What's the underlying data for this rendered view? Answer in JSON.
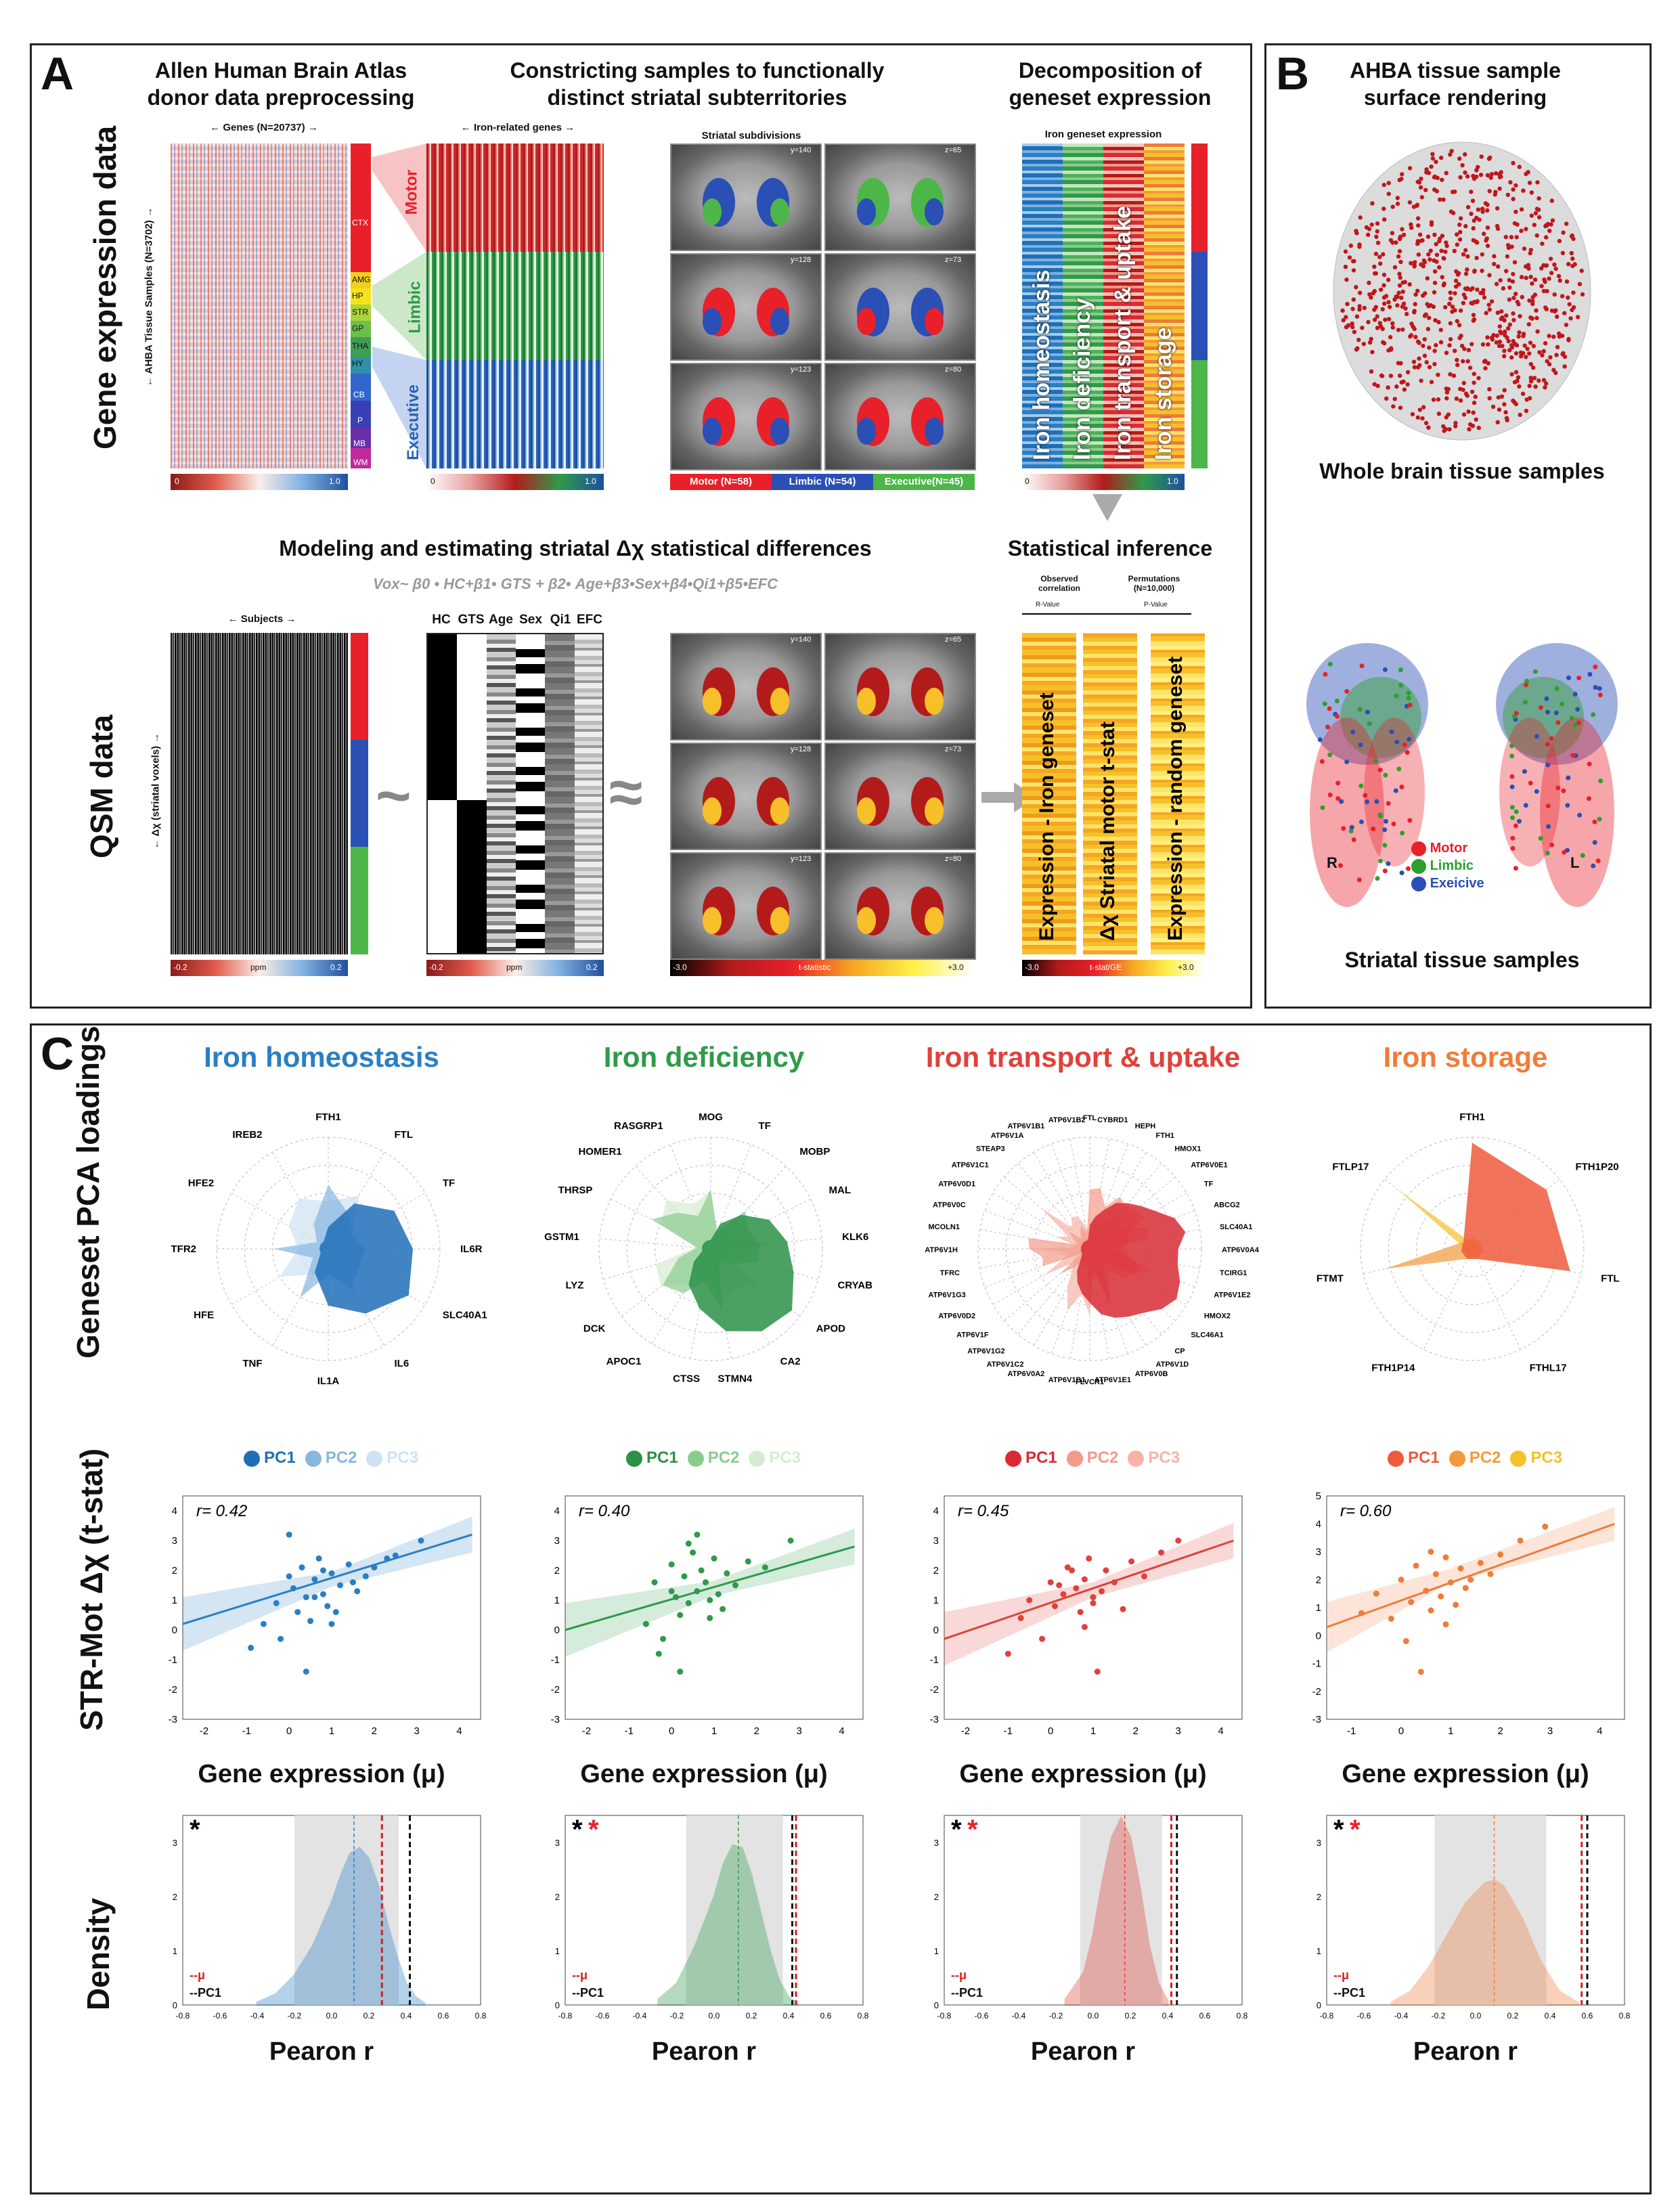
{
  "panelA": {
    "label": "A",
    "headers": {
      "h1": "Allen Human Brain Atlas\ndonor data preprocessing",
      "h2": "Constricting samples to functionally\ndistinct striatal subterritories",
      "h3": "Decomposition of\ngeneset expression",
      "h4": "Modeling  and estimating striatal Δχ statistical differences",
      "h5": "Statistical inference"
    },
    "row_labels": {
      "gene": "Gene  expression data",
      "qsm": "QSM data"
    },
    "genes_label": "Genes (N=20737)",
    "samples_label": "AHBA Tissue Samples (N=3702)",
    "iron_genes_label": "Iron-related genes",
    "regions": [
      "CTX",
      "AMG",
      "HP",
      "STR",
      "GP",
      "THA",
      "HY",
      "CB",
      "P",
      "MB",
      "WM"
    ],
    "network_labels": [
      "Motor",
      "Limbic",
      "Executive"
    ],
    "striatal_subdivisions": "Striatal subdivisions",
    "slice_labels_y": [
      "y=140",
      "y=128",
      "y=123"
    ],
    "slice_labels_z": [
      "z=65",
      "z=73",
      "z=80"
    ],
    "subdivision_legend": [
      "Motor (N=58)",
      "Limbic (N=54)",
      "Executive(N=45)"
    ],
    "iron_geneset_expression": "Iron geneset expression",
    "genesets": [
      "Iron homeostasis",
      "Iron deficiency",
      "Iron transport & uptake",
      "Iron storage"
    ],
    "cbar_0_1": [
      "0",
      "1.0"
    ],
    "formula": "Vox~ β0 • HC+β1• GTS +  β2• Age+β3•Sex+β4•Qi1+β5•EFC",
    "subjects_label": "Subjects",
    "voxels_label": "Δχ (striatal voxels)",
    "design_cols": [
      "HC",
      "GTS",
      "Age",
      "Sex",
      "Qi1",
      "EFC"
    ],
    "ppm_cbar": [
      "-0.2",
      "ppm",
      "0.2"
    ],
    "tstat_cbar": [
      "-3.0",
      "t-statistic",
      "+3.0"
    ],
    "tilde": "~",
    "approx": "≈",
    "observed": "Observed\ncorrelation",
    "r_value": "R-Value",
    "permutations": "Permutations\n(N=10,000)",
    "p_value": "P-Value",
    "inference_cols": [
      "Expression - Iron geneset",
      "Δχ Striatal motor  t-stat",
      "Expression - random geneset"
    ],
    "tstat_ge_cbar": [
      "-3.0",
      "t-stat/GE",
      "+3.0"
    ]
  },
  "panelB": {
    "label": "B",
    "title": "AHBA tissue sample\nsurface rendering",
    "whole_brain": "Whole brain tissue samples",
    "striatal": "Striatal tissue samples",
    "legend": [
      {
        "name": "Motor",
        "color": "#e8202a"
      },
      {
        "name": "Limbic",
        "color": "#2ca02c"
      },
      {
        "name": "Exeicive",
        "color": "#2a4fb5"
      }
    ],
    "side_r": "R",
    "side_l": "L"
  },
  "panelC": {
    "label": "C",
    "row_labels": {
      "pca": "Geneset PCA loadings",
      "corr": "STR-Mot Δχ (t-stat)",
      "density": "Density"
    },
    "xlabel_corr": "Gene expression (μ)",
    "xlabel_density": "Pearon r",
    "density_legend": [
      "--μ",
      "--PC1"
    ],
    "columns": [
      {
        "title": "Iron homeostasis",
        "color": "#2a7fc4",
        "pc_colors": [
          "#1f6fb8",
          "#86b7df",
          "#cfe2f3"
        ],
        "pcs": [
          "PC1",
          "PC2",
          "PC3"
        ],
        "genes": [
          "FTH1",
          "FTL",
          "TF",
          "IL6R",
          "SLC40A1",
          "IL6",
          "IL1A",
          "TNF",
          "HFE",
          "TFR2",
          "HFE2",
          "IREB2"
        ],
        "r_text": "r= 0.42",
        "stars": "*",
        "red_star": false
      },
      {
        "title": "Iron deficiency",
        "color": "#2f9a4a",
        "pc_colors": [
          "#2a9147",
          "#8acc8e",
          "#d5ecd0"
        ],
        "pcs": [
          "PC1",
          "PC2",
          "PC3"
        ],
        "genes": [
          "MOG",
          "TF",
          "MOBP",
          "MAL",
          "KLK6",
          "CRYAB",
          "APOD",
          "CA2",
          "STMN4",
          "CTSS",
          "APOC1",
          "DCK",
          "LYZ",
          "GSTM1",
          "THRSP",
          "HOMER1",
          "RASGRP1"
        ],
        "r_text": "r= 0.40",
        "stars": "*",
        "red_star": true
      },
      {
        "title": "Iron transport & uptake",
        "color": "#e0413a",
        "pc_colors": [
          "#d92b34",
          "#f39a8a",
          "#f7b3a5"
        ],
        "pcs": [
          "PC1",
          "PC2",
          "PC3"
        ],
        "genes": [
          "FTL",
          "CYBRD1",
          "HEPH",
          "FTH1",
          "HMOX1",
          "ATP6V0E1",
          "TF",
          "ABCG2",
          "SLC40A1",
          "ATP6V0A4",
          "TCIRG1",
          "ATP6V1E2",
          "HMOX2",
          "SLC46A1",
          "CP",
          "ATP6V1D",
          "ATP6V0B",
          "ATP6V1E1",
          "FLVCR1",
          "ATP6V1B1",
          "ATP6V0A2",
          "ATP6V1C2",
          "ATP6V1G2",
          "ATP6V1F",
          "ATP6V0D2",
          "ATP6V1G3",
          "TFRC",
          "ATP6V1H",
          "MCOLN1",
          "ATP6V0C",
          "ATP6V0D1",
          "ATP6V1C1",
          "STEAP3",
          "ATP6V1A",
          "ATP6V1B1",
          "ATP6V1B2"
        ],
        "r_text": "r= 0.45",
        "stars": "*",
        "red_star": true
      },
      {
        "title": "Iron storage",
        "color": "#f07c3a",
        "pc_colors": [
          "#ee5a3c",
          "#f49a3c",
          "#f7c02a"
        ],
        "pcs": [
          "PC1",
          "PC2",
          "PC3"
        ],
        "genes": [
          "FTH1",
          "FTH1P20",
          "FTL",
          "FTHL17",
          "FTH1P14",
          "FTMT",
          "FTLP17"
        ],
        "r_text": "r= 0.60",
        "stars": "*",
        "red_star": true
      }
    ]
  },
  "chart_data": [
    {
      "type": "scatter",
      "title": "Iron homeostasis",
      "xlabel": "Gene expression (μ)",
      "ylabel": "STR-Mot Δχ (t-stat)",
      "xlim": [
        -2.5,
        4.5
      ],
      "ylim": [
        -3,
        4.5
      ],
      "r": 0.42,
      "fit": {
        "x": [
          -2.5,
          4.3
        ],
        "y": [
          0.2,
          3.2
        ]
      },
      "x": [
        -0.9,
        -0.6,
        -0.3,
        0.0,
        0.1,
        0.2,
        0.3,
        0.4,
        0.5,
        0.6,
        0.7,
        0.8,
        0.9,
        1.0,
        1.1,
        1.2,
        1.4,
        1.6,
        1.8,
        2.0,
        2.3,
        3.1,
        -0.2,
        0.4,
        0.6,
        1.0,
        0.0,
        0.8,
        1.5,
        2.5
      ],
      "y": [
        -0.6,
        0.2,
        0.9,
        1.8,
        1.4,
        0.6,
        2.1,
        1.1,
        0.3,
        1.7,
        2.4,
        1.2,
        0.8,
        1.9,
        0.6,
        1.5,
        2.2,
        1.3,
        1.8,
        2.1,
        2.4,
        3.0,
        -0.3,
        -1.4,
        1.1,
        0.2,
        3.2,
        2.0,
        1.6,
        2.5
      ]
    },
    {
      "type": "scatter",
      "title": "Iron deficiency",
      "xlabel": "Gene expression (μ)",
      "ylabel": "",
      "xlim": [
        -2.5,
        4.5
      ],
      "ylim": [
        -3,
        4.5
      ],
      "r": 0.4,
      "fit": {
        "x": [
          -2.5,
          4.3
        ],
        "y": [
          0.0,
          2.8
        ]
      },
      "x": [
        -0.6,
        -0.4,
        -0.2,
        0.0,
        0.1,
        0.2,
        0.3,
        0.4,
        0.5,
        0.6,
        0.7,
        0.8,
        0.9,
        1.0,
        1.1,
        1.3,
        1.5,
        1.8,
        2.2,
        2.8,
        -0.3,
        0.2,
        0.6,
        0.9,
        1.2,
        0.0,
        0.4
      ],
      "y": [
        0.2,
        1.6,
        -0.3,
        2.2,
        1.1,
        0.5,
        1.8,
        0.9,
        2.6,
        1.3,
        2.0,
        1.6,
        0.4,
        2.4,
        1.2,
        1.9,
        1.5,
        2.3,
        2.1,
        3.0,
        -0.8,
        -1.4,
        3.2,
        1.0,
        0.7,
        1.3,
        2.9
      ]
    },
    {
      "type": "scatter",
      "title": "Iron transport & uptake",
      "xlabel": "Gene expression (μ)",
      "ylabel": "",
      "xlim": [
        -2.5,
        4.5
      ],
      "ylim": [
        -3,
        4.5
      ],
      "r": 0.45,
      "fit": {
        "x": [
          -2.5,
          4.3
        ],
        "y": [
          -0.3,
          3.0
        ]
      },
      "x": [
        -1.0,
        -0.7,
        -0.5,
        -0.2,
        0.0,
        0.1,
        0.3,
        0.5,
        0.6,
        0.7,
        0.8,
        0.9,
        1.0,
        1.1,
        1.2,
        1.3,
        1.5,
        1.7,
        1.9,
        2.2,
        2.6,
        3.0,
        0.4,
        0.8,
        1.0,
        0.2
      ],
      "y": [
        -0.8,
        0.4,
        1.0,
        -0.3,
        1.6,
        0.8,
        1.2,
        2.0,
        1.4,
        0.6,
        1.7,
        2.4,
        1.1,
        -1.4,
        1.3,
        2.0,
        1.6,
        0.7,
        2.3,
        1.8,
        2.6,
        3.0,
        2.1,
        0.1,
        0.9,
        1.5
      ]
    },
    {
      "type": "scatter",
      "title": "Iron storage",
      "xlabel": "Gene expression (μ)",
      "ylabel": "",
      "xlim": [
        -1.5,
        4.5
      ],
      "ylim": [
        -3,
        5
      ],
      "r": 0.6,
      "fit": {
        "x": [
          -1.5,
          4.3
        ],
        "y": [
          0.3,
          4.0
        ]
      },
      "x": [
        -0.8,
        -0.5,
        -0.2,
        0.0,
        0.2,
        0.3,
        0.5,
        0.6,
        0.7,
        0.8,
        0.9,
        1.0,
        1.1,
        1.2,
        1.4,
        1.6,
        1.8,
        2.0,
        2.4,
        2.9,
        0.1,
        0.4,
        0.9,
        1.3,
        0.6
      ],
      "y": [
        0.8,
        1.5,
        0.6,
        2.0,
        1.2,
        2.5,
        1.6,
        0.9,
        2.2,
        1.4,
        2.8,
        1.9,
        1.1,
        2.4,
        2.0,
        2.6,
        2.2,
        2.9,
        3.4,
        3.9,
        -0.2,
        -1.3,
        0.4,
        1.7,
        3.0
      ]
    },
    {
      "type": "area",
      "title": "Iron homeostasis density",
      "xlabel": "Pearon r",
      "ylabel": "Density",
      "xlim": [
        -0.8,
        0.8
      ],
      "ylim": [
        0,
        3.5
      ],
      "mu": 0.27,
      "pc1": 0.42,
      "mean": 0.12,
      "ci": [
        -0.2,
        0.36
      ],
      "x": [
        -0.4,
        -0.3,
        -0.2,
        -0.1,
        0.0,
        0.05,
        0.1,
        0.15,
        0.2,
        0.25,
        0.3,
        0.35,
        0.4,
        0.45,
        0.5
      ],
      "y": [
        0.05,
        0.2,
        0.55,
        1.1,
        1.9,
        2.4,
        2.8,
        2.9,
        2.7,
        2.2,
        1.5,
        0.9,
        0.4,
        0.15,
        0.03
      ]
    },
    {
      "type": "area",
      "title": "Iron deficiency density",
      "xlabel": "Pearon r",
      "ylabel": "Density",
      "xlim": [
        -0.8,
        0.8
      ],
      "ylim": [
        0,
        3.5
      ],
      "mu": 0.44,
      "pc1": 0.42,
      "mean": 0.13,
      "ci": [
        -0.15,
        0.37
      ],
      "x": [
        -0.3,
        -0.2,
        -0.1,
        0.0,
        0.05,
        0.1,
        0.15,
        0.2,
        0.25,
        0.3,
        0.35,
        0.4,
        0.45
      ],
      "y": [
        0.1,
        0.4,
        1.1,
        2.0,
        2.6,
        2.95,
        2.9,
        2.4,
        1.7,
        1.0,
        0.45,
        0.15,
        0.03
      ]
    },
    {
      "type": "area",
      "title": "Iron transport & uptake density",
      "xlabel": "Pearon r",
      "ylabel": "Density",
      "xlim": [
        -0.8,
        0.8
      ],
      "ylim": [
        0,
        3.5
      ],
      "mu": 0.42,
      "pc1": 0.45,
      "mean": 0.17,
      "ci": [
        -0.07,
        0.37
      ],
      "x": [
        -0.15,
        -0.05,
        0.0,
        0.05,
        0.1,
        0.15,
        0.2,
        0.25,
        0.3,
        0.35,
        0.4
      ],
      "y": [
        0.1,
        0.6,
        1.3,
        2.3,
        3.1,
        3.45,
        3.1,
        2.2,
        1.1,
        0.4,
        0.08
      ]
    },
    {
      "type": "area",
      "title": "Iron storage density",
      "xlabel": "Pearon r",
      "ylabel": "Density",
      "xlim": [
        -0.8,
        0.8
      ],
      "ylim": [
        0,
        3.5
      ],
      "mu": 0.57,
      "pc1": 0.6,
      "mean": 0.1,
      "ci": [
        -0.22,
        0.38
      ],
      "x": [
        -0.45,
        -0.35,
        -0.25,
        -0.15,
        -0.05,
        0.05,
        0.1,
        0.15,
        0.25,
        0.35,
        0.45,
        0.55
      ],
      "y": [
        0.05,
        0.25,
        0.7,
        1.3,
        1.9,
        2.25,
        2.3,
        2.2,
        1.6,
        0.8,
        0.25,
        0.04
      ]
    }
  ]
}
